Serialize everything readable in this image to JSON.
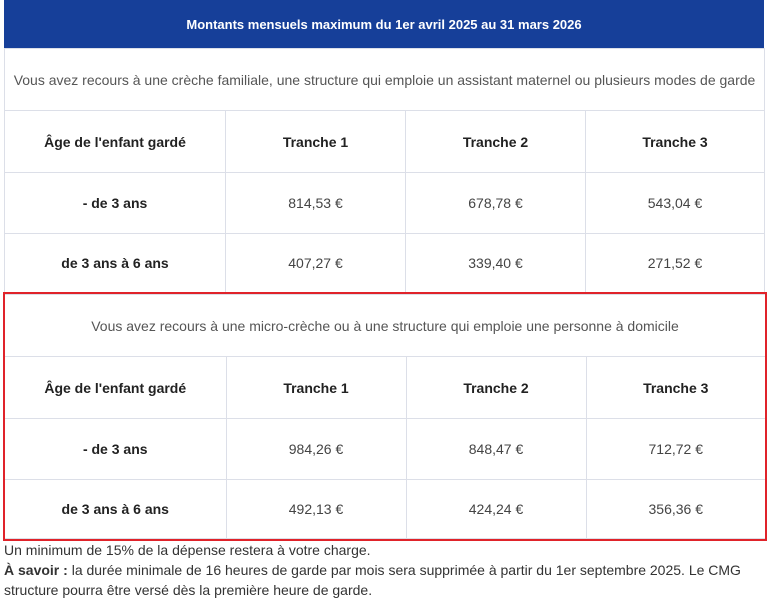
{
  "header": {
    "title": "Montants mensuels maximum du 1er avril 2025 au 31 mars 2026"
  },
  "sections": [
    {
      "title": "Vous avez recours à une crèche familiale, une structure qui emploie un assistant maternel ou plusieurs modes de garde",
      "columns": [
        "Âge de l'enfant gardé",
        "Tranche 1",
        "Tranche 2",
        "Tranche 3"
      ],
      "rows": [
        [
          "- de 3 ans",
          "814,53 €",
          "678,78 €",
          "543,04 €"
        ],
        [
          "de 3 ans à 6 ans",
          "407,27 €",
          "339,40 €",
          "271,52 €"
        ]
      ]
    },
    {
      "title": "Vous avez recours à une micro-crèche ou à une structure qui emploie une personne à domicile",
      "columns": [
        "Âge de l'enfant gardé",
        "Tranche 1",
        "Tranche 2",
        "Tranche 3"
      ],
      "rows": [
        [
          "- de 3 ans",
          "984,26 €",
          "848,47 €",
          "712,72 €"
        ],
        [
          "de 3 ans à 6 ans",
          "492,13 €",
          "424,24 €",
          "356,36 €"
        ]
      ]
    }
  ],
  "footer": {
    "line1": "Un minimum de 15% de la dépense restera à votre charge.",
    "label": "À savoir :",
    "line2": "la durée minimale de 16 heures de garde par mois sera supprimée à partir du 1er septembre 2025. Le CMG structure pourra être versé dès la première heure de garde."
  }
}
